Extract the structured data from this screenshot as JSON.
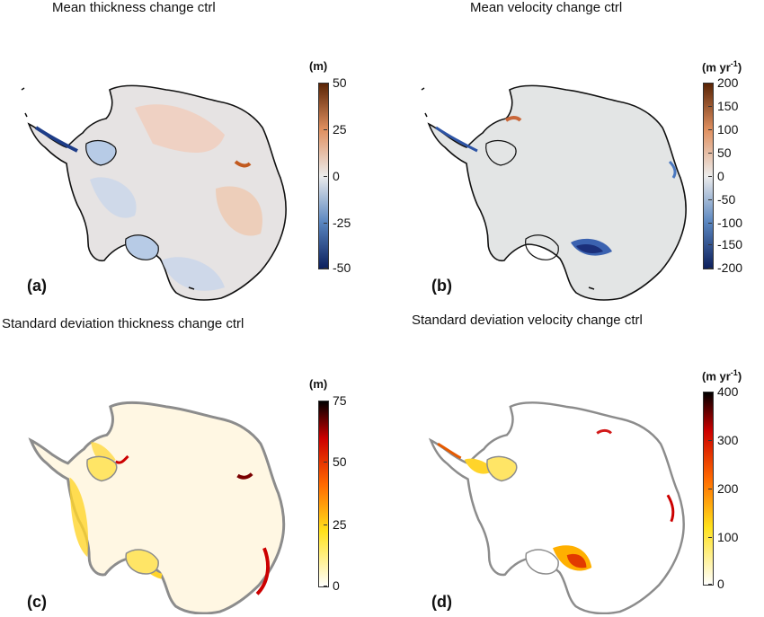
{
  "panels": {
    "a": {
      "title": "Mean thickness change ctrl",
      "label": "(a)",
      "unit": "(m)",
      "ticks": [
        "50",
        "25",
        "0",
        "-25",
        "-50"
      ],
      "colors": [
        "#5a2405",
        "#e09060",
        "#ececec",
        "#5a86c0",
        "#0c1f5c"
      ]
    },
    "b": {
      "title": "Mean velocity change ctrl",
      "label": "(b)",
      "unit_prefix": "(m yr",
      "unit_sup": "-1",
      "unit_suffix": ")",
      "ticks": [
        "200",
        "150",
        "100",
        "50",
        "0",
        "-50",
        "-100",
        "-150",
        "-200"
      ],
      "colors": [
        "#5a2405",
        "#e09060",
        "#ececec",
        "#5a86c0",
        "#0c1f5c"
      ]
    },
    "c": {
      "title": "Standard deviation thickness change ctrl",
      "label": "(c)",
      "unit": "(m)",
      "ticks": [
        "75",
        "50",
        "25",
        "0"
      ],
      "colors": [
        "#000000",
        "#cc0000",
        "#ff6a00",
        "#ffe11a",
        "#ffffff"
      ]
    },
    "d": {
      "title": "Standard deviation velocity change ctrl",
      "label": "(d)",
      "unit_prefix": "(m yr",
      "unit_sup": "-1",
      "unit_suffix": ")",
      "ticks": [
        "400",
        "300",
        "200",
        "100",
        "0"
      ],
      "colors": [
        "#000000",
        "#cc0000",
        "#ff6a00",
        "#ffe11a",
        "#ffffff"
      ]
    }
  }
}
